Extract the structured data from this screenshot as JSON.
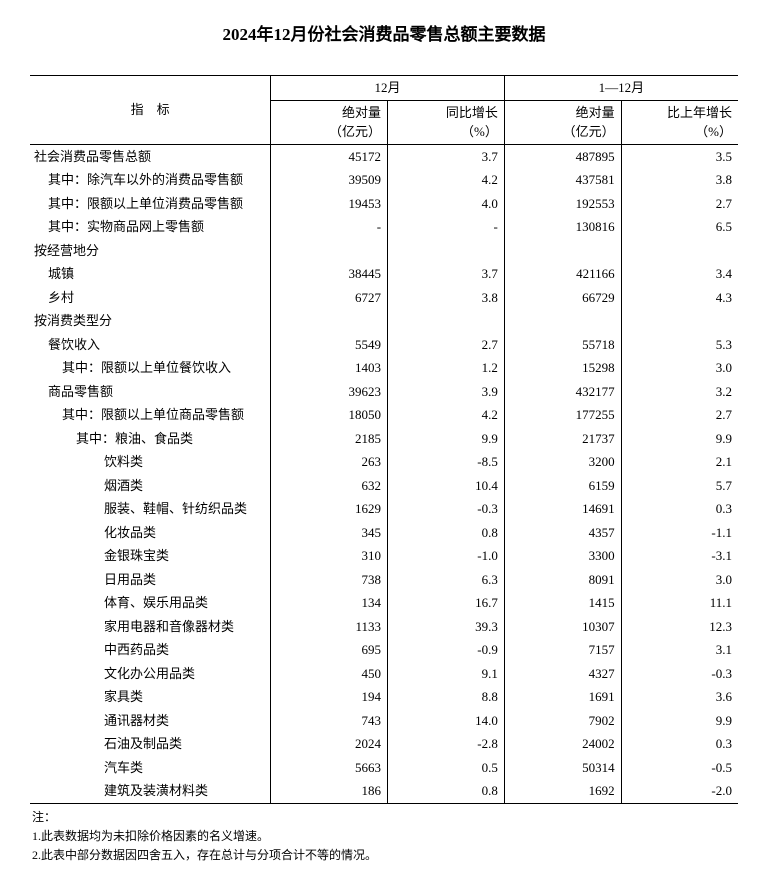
{
  "title": "2024年12月份社会消费品零售总额主要数据",
  "headers": {
    "indicator": "指　标",
    "period1": "12月",
    "period2": "1—12月",
    "abs_label": "绝对量",
    "abs_unit": "（亿元）",
    "growth1_label": "同比增长",
    "growth2_label": "比上年增长",
    "growth_unit": "（%）"
  },
  "rows": [
    {
      "indent": 0,
      "label": "社会消费品零售总额",
      "v1": "45172",
      "g1": "3.7",
      "v2": "487895",
      "g2": "3.5"
    },
    {
      "indent": 1,
      "label": "其中：除汽车以外的消费品零售额",
      "v1": "39509",
      "g1": "4.2",
      "v2": "437581",
      "g2": "3.8"
    },
    {
      "indent": 1,
      "label": "其中：限额以上单位消费品零售额",
      "v1": "19453",
      "g1": "4.0",
      "v2": "192553",
      "g2": "2.7"
    },
    {
      "indent": 1,
      "label": "其中：实物商品网上零售额",
      "v1": "-",
      "g1": "-",
      "v2": "130816",
      "g2": "6.5"
    },
    {
      "indent": 0,
      "label": "按经营地分",
      "v1": "",
      "g1": "",
      "v2": "",
      "g2": ""
    },
    {
      "indent": 1,
      "label": "城镇",
      "v1": "38445",
      "g1": "3.7",
      "v2": "421166",
      "g2": "3.4"
    },
    {
      "indent": 1,
      "label": "乡村",
      "v1": "6727",
      "g1": "3.8",
      "v2": "66729",
      "g2": "4.3"
    },
    {
      "indent": 0,
      "label": "按消费类型分",
      "v1": "",
      "g1": "",
      "v2": "",
      "g2": ""
    },
    {
      "indent": 1,
      "label": "餐饮收入",
      "v1": "5549",
      "g1": "2.7",
      "v2": "55718",
      "g2": "5.3"
    },
    {
      "indent": 2,
      "label": "其中：限额以上单位餐饮收入",
      "v1": "1403",
      "g1": "1.2",
      "v2": "15298",
      "g2": "3.0"
    },
    {
      "indent": 1,
      "label": "商品零售额",
      "v1": "39623",
      "g1": "3.9",
      "v2": "432177",
      "g2": "3.2"
    },
    {
      "indent": 2,
      "label": "其中：限额以上单位商品零售额",
      "v1": "18050",
      "g1": "4.2",
      "v2": "177255",
      "g2": "2.7"
    },
    {
      "indent": 3,
      "label": "其中：粮油、食品类",
      "v1": "2185",
      "g1": "9.9",
      "v2": "21737",
      "g2": "9.9"
    },
    {
      "indent": 4,
      "label": "饮料类",
      "v1": "263",
      "g1": "-8.5",
      "v2": "3200",
      "g2": "2.1"
    },
    {
      "indent": 4,
      "label": "烟酒类",
      "v1": "632",
      "g1": "10.4",
      "v2": "6159",
      "g2": "5.7"
    },
    {
      "indent": 4,
      "label": "服装、鞋帽、针纺织品类",
      "v1": "1629",
      "g1": "-0.3",
      "v2": "14691",
      "g2": "0.3"
    },
    {
      "indent": 4,
      "label": "化妆品类",
      "v1": "345",
      "g1": "0.8",
      "v2": "4357",
      "g2": "-1.1"
    },
    {
      "indent": 4,
      "label": "金银珠宝类",
      "v1": "310",
      "g1": "-1.0",
      "v2": "3300",
      "g2": "-3.1"
    },
    {
      "indent": 4,
      "label": "日用品类",
      "v1": "738",
      "g1": "6.3",
      "v2": "8091",
      "g2": "3.0"
    },
    {
      "indent": 4,
      "label": "体育、娱乐用品类",
      "v1": "134",
      "g1": "16.7",
      "v2": "1415",
      "g2": "11.1"
    },
    {
      "indent": 4,
      "label": "家用电器和音像器材类",
      "v1": "1133",
      "g1": "39.3",
      "v2": "10307",
      "g2": "12.3"
    },
    {
      "indent": 4,
      "label": "中西药品类",
      "v1": "695",
      "g1": "-0.9",
      "v2": "7157",
      "g2": "3.1"
    },
    {
      "indent": 4,
      "label": "文化办公用品类",
      "v1": "450",
      "g1": "9.1",
      "v2": "4327",
      "g2": "-0.3"
    },
    {
      "indent": 4,
      "label": "家具类",
      "v1": "194",
      "g1": "8.8",
      "v2": "1691",
      "g2": "3.6"
    },
    {
      "indent": 4,
      "label": "通讯器材类",
      "v1": "743",
      "g1": "14.0",
      "v2": "7902",
      "g2": "9.9"
    },
    {
      "indent": 4,
      "label": "石油及制品类",
      "v1": "2024",
      "g1": "-2.8",
      "v2": "24002",
      "g2": "0.3"
    },
    {
      "indent": 4,
      "label": "汽车类",
      "v1": "5663",
      "g1": "0.5",
      "v2": "50314",
      "g2": "-0.5"
    },
    {
      "indent": 4,
      "label": "建筑及装潢材料类",
      "v1": "186",
      "g1": "0.8",
      "v2": "1692",
      "g2": "-2.0"
    }
  ],
  "notes": {
    "header": "注：",
    "n1": "1.此表数据均为未扣除价格因素的名义增速。",
    "n2": "2.此表中部分数据因四舍五入，存在总计与分项合计不等的情况。"
  }
}
